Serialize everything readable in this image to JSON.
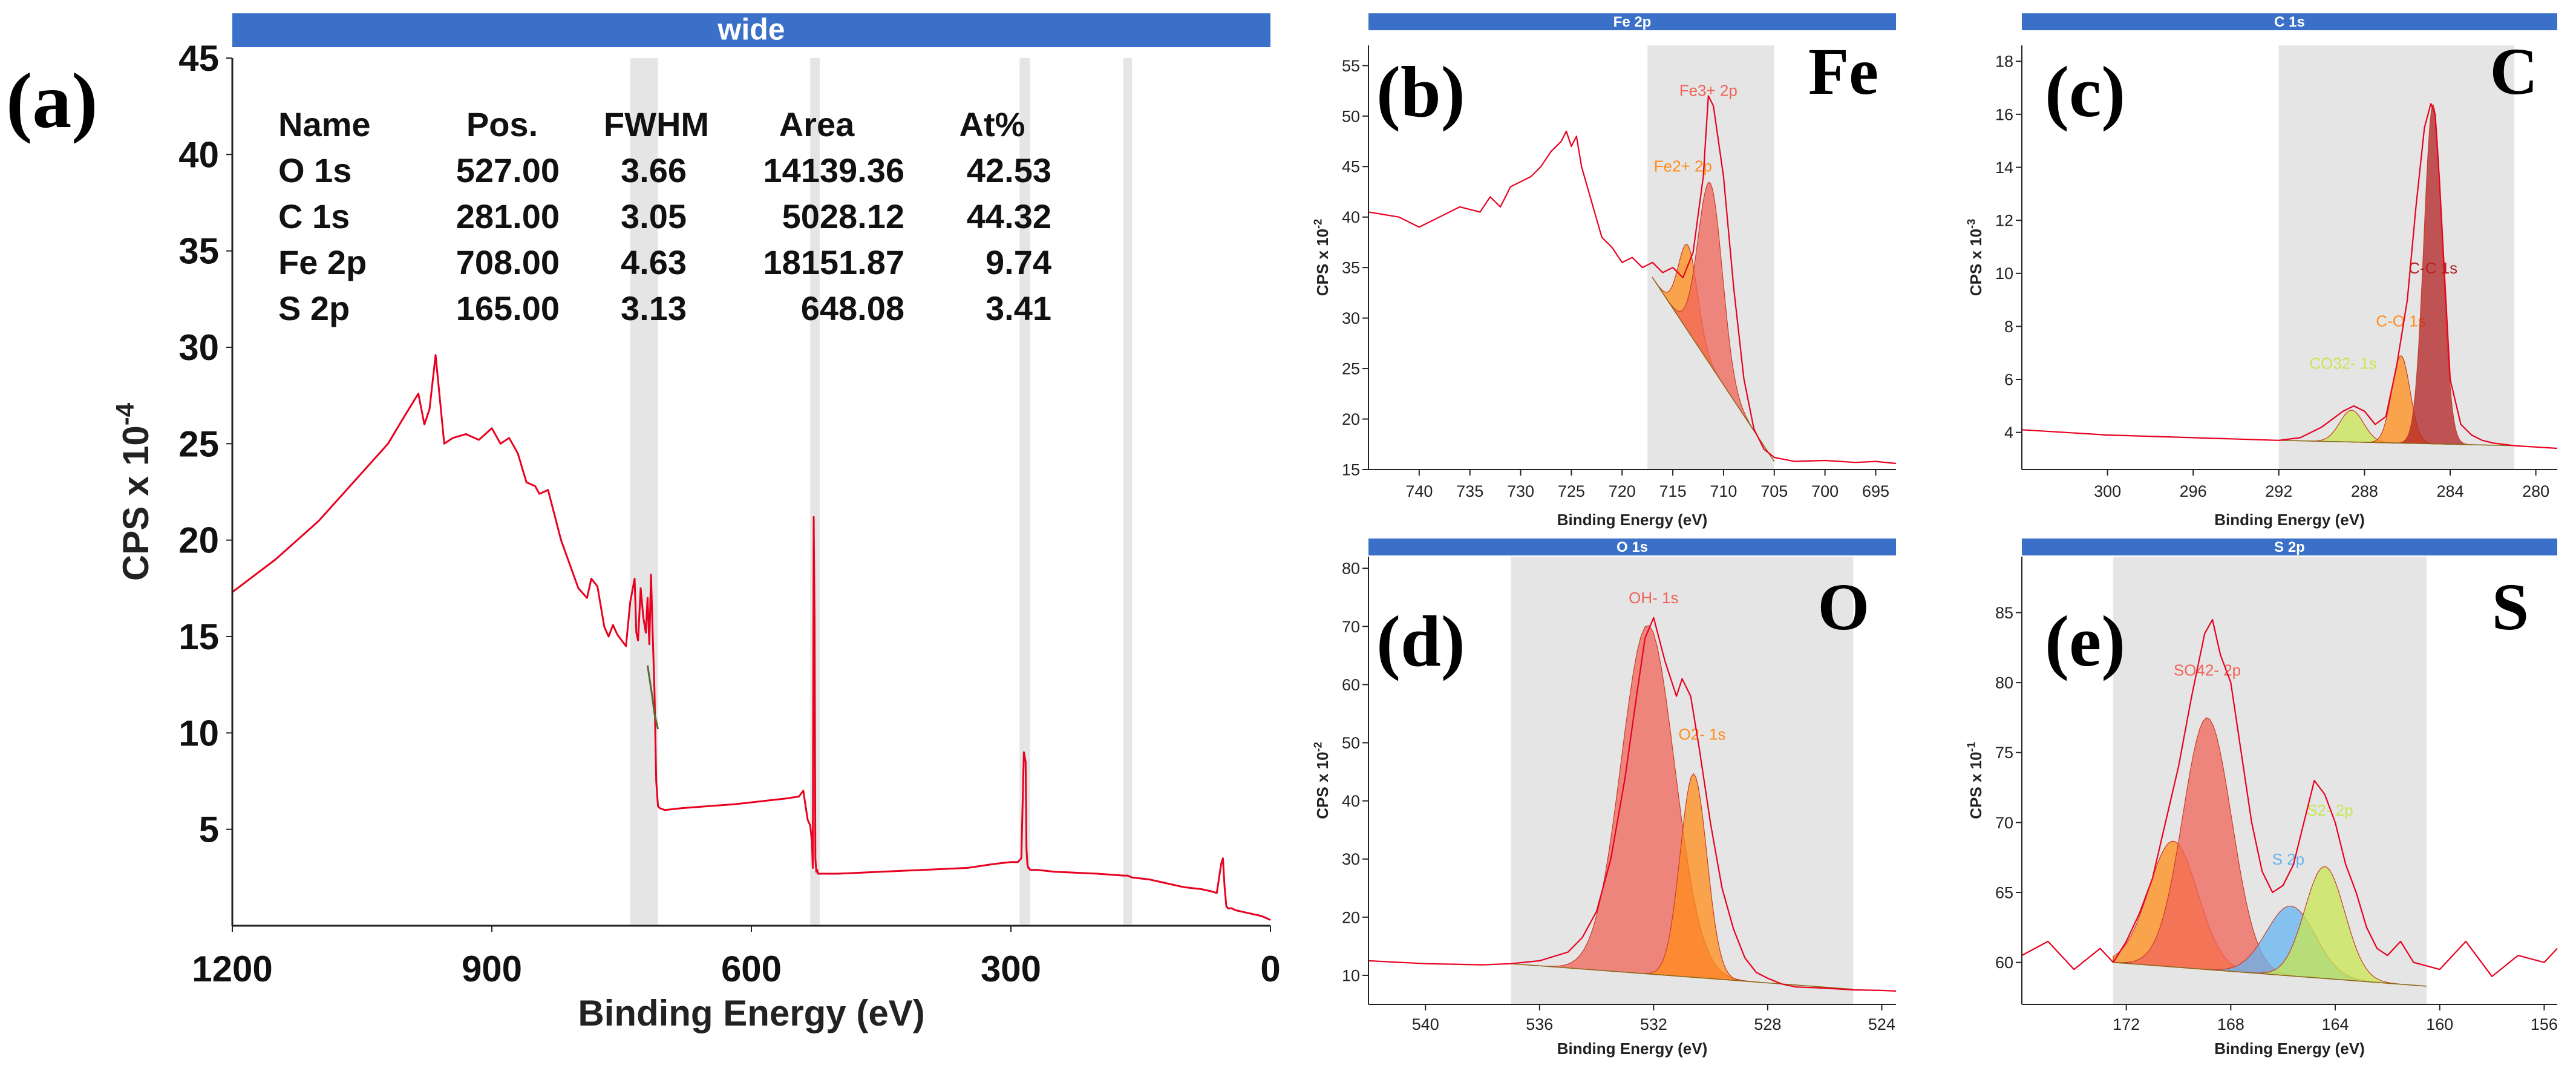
{
  "figure": {
    "colors": {
      "header": "#3a70c7",
      "spectrum": "#e8001f",
      "band": "#dcdcdc",
      "axis": "#222222"
    }
  },
  "chart_data": [
    {
      "id": "a",
      "panel_label": "(a)",
      "type": "line",
      "title": "wide",
      "xlabel": "Binding Energy (eV)",
      "ylabel_base": "CPS x 10",
      "ylabel_exp": "-4",
      "xlim": [
        1200,
        0
      ],
      "ylim": [
        0,
        45
      ],
      "xticks": [
        1200,
        900,
        600,
        300,
        0
      ],
      "yticks": [
        5,
        10,
        15,
        20,
        25,
        30,
        35,
        40,
        45
      ],
      "bands": [
        [
          740,
          708
        ],
        [
          532,
          521
        ],
        [
          290,
          278
        ],
        [
          170,
          160
        ]
      ],
      "series": [
        {
          "name": "survey",
          "color": "#e8001f",
          "x": [
            1200,
            1150,
            1100,
            1050,
            1020,
            1000,
            985,
            978,
            972,
            965,
            955,
            945,
            930,
            915,
            900,
            890,
            880,
            870,
            860,
            850,
            845,
            835,
            820,
            800,
            790,
            785,
            778,
            770,
            765,
            760,
            755,
            750,
            745,
            740,
            735,
            733,
            731,
            728,
            725,
            722,
            720,
            718,
            716,
            714,
            712,
            710,
            708,
            706,
            700,
            680,
            650,
            620,
            600,
            580,
            560,
            545,
            540,
            535,
            532,
            530,
            529,
            528,
            527,
            526,
            525,
            524,
            523,
            520,
            500,
            450,
            400,
            350,
            320,
            300,
            292,
            288,
            285,
            283,
            282,
            281,
            280,
            279,
            278,
            276,
            270,
            250,
            200,
            170,
            165,
            160,
            140,
            120,
            100,
            80,
            70,
            62,
            57,
            55,
            53,
            51,
            49,
            45,
            40,
            30,
            20,
            10,
            0
          ],
          "y": [
            17.3,
            19.0,
            21.0,
            23.5,
            25.0,
            26.5,
            27.6,
            26.0,
            26.8,
            29.6,
            25.0,
            25.3,
            25.5,
            25.2,
            25.8,
            25.0,
            25.3,
            24.5,
            23.0,
            22.8,
            22.4,
            22.6,
            20.0,
            17.5,
            17.0,
            18.0,
            17.6,
            15.5,
            15.0,
            15.6,
            15.1,
            14.8,
            14.5,
            16.8,
            18.0,
            15.2,
            14.8,
            17.5,
            16.0,
            15.2,
            17.0,
            14.6,
            18.2,
            15.0,
            12.2,
            7.5,
            6.2,
            6.1,
            6.0,
            6.1,
            6.2,
            6.3,
            6.4,
            6.5,
            6.6,
            6.7,
            7.0,
            5.5,
            5.2,
            4.4,
            3.0,
            21.2,
            16.0,
            3.5,
            2.8,
            2.9,
            2.7,
            2.7,
            2.7,
            2.8,
            2.9,
            3.0,
            3.2,
            3.3,
            3.3,
            3.5,
            9.0,
            8.5,
            4.0,
            3.2,
            3.0,
            3.0,
            2.9,
            2.9,
            2.9,
            2.8,
            2.7,
            2.6,
            2.6,
            2.5,
            2.4,
            2.2,
            2.0,
            1.9,
            1.8,
            1.7,
            3.2,
            3.5,
            2.0,
            1.0,
            0.9,
            0.9,
            0.8,
            0.7,
            0.6,
            0.5,
            0.3
          ]
        },
        {
          "name": "background",
          "color": "#556b2f",
          "x": [
            720,
            715,
            712,
            708
          ],
          "y": [
            13.5,
            12.0,
            11.0,
            10.2
          ]
        }
      ],
      "table": {
        "headers": [
          "Name",
          "Pos.",
          "FWHM",
          "Area",
          "At%"
        ],
        "rows": [
          [
            "O 1s",
            "527.00",
            "3.66",
            "14139.36",
            "42.53"
          ],
          [
            "C 1s",
            "281.00",
            "3.05",
            "5028.12",
            "44.32"
          ],
          [
            "Fe 2p",
            "708.00",
            "4.63",
            "18151.87",
            "9.74"
          ],
          [
            "S 2p",
            "165.00",
            "3.13",
            "648.08",
            "3.41"
          ]
        ]
      }
    },
    {
      "id": "b",
      "panel_label": "(b)",
      "element_label": "Fe",
      "type": "line",
      "title": "Fe 2p",
      "xlabel": "Binding Energy (eV)",
      "ylabel_base": "CPS x 10",
      "ylabel_exp": "-2",
      "xlim": [
        745,
        693
      ],
      "ylim": [
        15,
        57
      ],
      "xticks": [
        740,
        735,
        730,
        725,
        720,
        715,
        710,
        705,
        700,
        695
      ],
      "yticks": [
        15,
        20,
        25,
        30,
        35,
        40,
        45,
        50,
        55
      ],
      "bands": [
        [
          717.5,
          705
        ]
      ],
      "series": [
        {
          "name": "envelope",
          "color": "#e8001f",
          "x": [
            745,
            742,
            740,
            738,
            736,
            734,
            733,
            732,
            731,
            729,
            728,
            727,
            726,
            725.5,
            725,
            724.5,
            724,
            723,
            722,
            721,
            720,
            719,
            718,
            717,
            716,
            715,
            714,
            713,
            712,
            711.5,
            711,
            710,
            709,
            708,
            707,
            706,
            705,
            704,
            703,
            700,
            697,
            695,
            693
          ],
          "y": [
            40.5,
            40.0,
            39.0,
            40.0,
            41.0,
            40.5,
            42.0,
            41.0,
            43.0,
            44.0,
            45.0,
            46.5,
            47.5,
            48.5,
            47.0,
            48.0,
            45.0,
            41.5,
            38.0,
            37.0,
            35.5,
            36.0,
            35.0,
            35.5,
            34.5,
            35.0,
            34.0,
            36.5,
            44.0,
            52.0,
            51.0,
            44.0,
            33.0,
            24.0,
            19.0,
            17.0,
            16.2,
            16.0,
            15.8,
            15.9,
            15.7,
            15.8,
            15.6
          ]
        }
      ],
      "peaks": [
        {
          "name": "Fe2+ 2p",
          "center": 713.5,
          "height": 8.5,
          "fwhm": 2.2,
          "color": "#ff8c1a",
          "label_x": 714.0,
          "label_y": 44.5
        },
        {
          "name": "Fe3+ 2p",
          "center": 711.3,
          "height": 18.0,
          "fwhm": 2.8,
          "color": "#f0645a",
          "label_x": 711.5,
          "label_y": 52.0
        }
      ],
      "background": {
        "x_high": 717,
        "y_high": 34.0,
        "x_low": 705,
        "y_low": 15.8
      }
    },
    {
      "id": "c",
      "panel_label": "(c)",
      "element_label": "C",
      "type": "line",
      "title": "C 1s",
      "xlabel": "Binding Energy (eV)",
      "ylabel_base": "CPS x 10",
      "ylabel_exp": "-3",
      "xlim": [
        304,
        279
      ],
      "ylim": [
        2.6,
        18.6
      ],
      "xticks": [
        300,
        296,
        292,
        288,
        284,
        280
      ],
      "yticks": [
        4,
        6,
        8,
        10,
        12,
        14,
        16,
        18
      ],
      "bands": [
        [
          292,
          281
        ]
      ],
      "series": [
        {
          "name": "envelope",
          "color": "#e8001f",
          "x": [
            304,
            300,
            296,
            292,
            291,
            290,
            289,
            288.5,
            288,
            287.5,
            287,
            286.5,
            286,
            285.6,
            285.2,
            284.9,
            284.7,
            284.5,
            284.2,
            284.0,
            283.5,
            283,
            282.5,
            282,
            281,
            280,
            279
          ],
          "y": [
            4.1,
            3.9,
            3.8,
            3.7,
            3.8,
            4.2,
            4.8,
            5.0,
            4.8,
            4.3,
            4.6,
            6.5,
            9.0,
            12.5,
            15.5,
            16.4,
            16.0,
            13.5,
            9.0,
            6.0,
            4.3,
            3.9,
            3.7,
            3.6,
            3.5,
            3.45,
            3.4
          ]
        }
      ],
      "peaks": [
        {
          "name": "CO32- 1s",
          "center": 288.6,
          "height": 1.2,
          "fwhm": 1.3,
          "color": "#c8e650",
          "label_x": 289.0,
          "label_y": 6.4
        },
        {
          "name": "C-O 1s",
          "center": 286.3,
          "height": 3.3,
          "fwhm": 1.0,
          "color": "#ff8c1a",
          "label_x": 286.3,
          "label_y": 8.0
        },
        {
          "name": "C-C 1s",
          "center": 284.8,
          "height": 12.8,
          "fwhm": 1.0,
          "color": "#b22222",
          "label_x": 284.8,
          "label_y": 10.0
        }
      ],
      "background": {
        "x_high": 292,
        "y_high": 3.7,
        "x_low": 281,
        "y_low": 3.5
      }
    },
    {
      "id": "d",
      "panel_label": "(d)",
      "element_label": "O",
      "type": "line",
      "title": "O 1s",
      "xlabel": "Binding Energy (eV)",
      "ylabel_base": "CPS x 10",
      "ylabel_exp": "-2",
      "xlim": [
        542,
        523.5
      ],
      "ylim": [
        5,
        82
      ],
      "xticks": [
        540,
        536,
        532,
        528,
        524
      ],
      "yticks": [
        10,
        20,
        30,
        40,
        50,
        60,
        70,
        80
      ],
      "bands": [
        [
          537,
          525
        ]
      ],
      "series": [
        {
          "name": "envelope",
          "color": "#e8001f",
          "x": [
            542,
            540,
            538,
            537,
            536,
            535,
            534.5,
            534,
            533.5,
            533,
            532.6,
            532.3,
            532,
            531.6,
            531.2,
            531,
            530.7,
            530.4,
            530,
            529.6,
            529.2,
            528.8,
            528.4,
            528,
            527.5,
            527,
            526,
            525,
            524,
            523.5
          ],
          "y": [
            12.5,
            12.0,
            11.8,
            12.0,
            12.5,
            14.0,
            16.5,
            21.0,
            30.0,
            44.0,
            58.0,
            68.0,
            71.5,
            64.0,
            58.0,
            61.0,
            58.0,
            49.0,
            36.0,
            25.0,
            18.0,
            13.0,
            10.5,
            9.5,
            8.5,
            8.0,
            7.8,
            7.5,
            7.4,
            7.3
          ]
        }
      ],
      "peaks": [
        {
          "name": "OH- 1s",
          "center": 532.2,
          "height": 60.0,
          "fwhm": 2.2,
          "color": "#f0645a",
          "label_x": 532.0,
          "label_y": 74.0
        },
        {
          "name": "O2- 1s",
          "center": 530.6,
          "height": 35.0,
          "fwhm": 1.1,
          "color": "#ff8c1a",
          "label_x": 530.3,
          "label_y": 50.5
        }
      ],
      "background": {
        "x_high": 537,
        "y_high": 12.0,
        "x_low": 525,
        "y_low": 7.6
      }
    },
    {
      "id": "e",
      "panel_label": "(e)",
      "element_label": "S",
      "type": "line",
      "title": "S 2p",
      "xlabel": "Binding Energy (eV)",
      "ylabel_base": "CPS x 10",
      "ylabel_exp": "-1",
      "xlim": [
        176,
        155.5
      ],
      "ylim": [
        57,
        89
      ],
      "xticks": [
        172,
        168,
        164,
        160,
        156
      ],
      "yticks": [
        60,
        65,
        70,
        75,
        80,
        85
      ],
      "bands": [
        [
          172.5,
          160.5
        ]
      ],
      "series": [
        {
          "name": "envelope",
          "color": "#e8001f",
          "x": [
            176,
            175,
            174,
            173,
            172.5,
            172,
            171.5,
            171,
            170.5,
            170,
            169.5,
            169,
            168.7,
            168.4,
            168,
            167.6,
            167.2,
            166.8,
            166.4,
            166,
            165.6,
            165.2,
            164.8,
            164.4,
            164,
            163.6,
            163.2,
            162.8,
            162.4,
            162,
            161.5,
            161,
            160,
            159,
            158,
            157,
            156,
            155.5
          ],
          "y": [
            60.5,
            61.5,
            59.5,
            61.0,
            60.0,
            61.5,
            63.5,
            66.0,
            70.0,
            74.0,
            79.0,
            83.5,
            84.5,
            82.0,
            80.0,
            75.0,
            70.0,
            66.5,
            65.0,
            65.5,
            67.0,
            70.0,
            73.0,
            72.0,
            70.0,
            67.0,
            65.0,
            62.5,
            61.0,
            60.5,
            61.5,
            60.0,
            59.5,
            61.5,
            59.0,
            60.5,
            60.0,
            61.0
          ]
        }
      ],
      "peaks": [
        {
          "name": "SO42- 2p",
          "center": 170.2,
          "height": 9.0,
          "fwhm": 2.2,
          "color": "#ff8c1a",
          "label_x": 171.0,
          "label_y": 80.5,
          "no_label": true
        },
        {
          "name": "SO42- 2p",
          "center": 168.9,
          "height": 18.0,
          "fwhm": 2.2,
          "color": "#f0645a",
          "label_x": 168.9,
          "label_y": 80.5
        },
        {
          "name": "S 2p",
          "center": 165.7,
          "height": 5.0,
          "fwhm": 2.2,
          "color": "#64b4f0",
          "label_x": 165.8,
          "label_y": 67.0
        },
        {
          "name": "S2- 2p",
          "center": 164.4,
          "height": 8.0,
          "fwhm": 1.8,
          "color": "#c8e650",
          "label_x": 164.2,
          "label_y": 70.5
        }
      ],
      "background": {
        "x_high": 172.5,
        "y_high": 60.0,
        "x_low": 160.5,
        "y_low": 58.3
      }
    }
  ]
}
